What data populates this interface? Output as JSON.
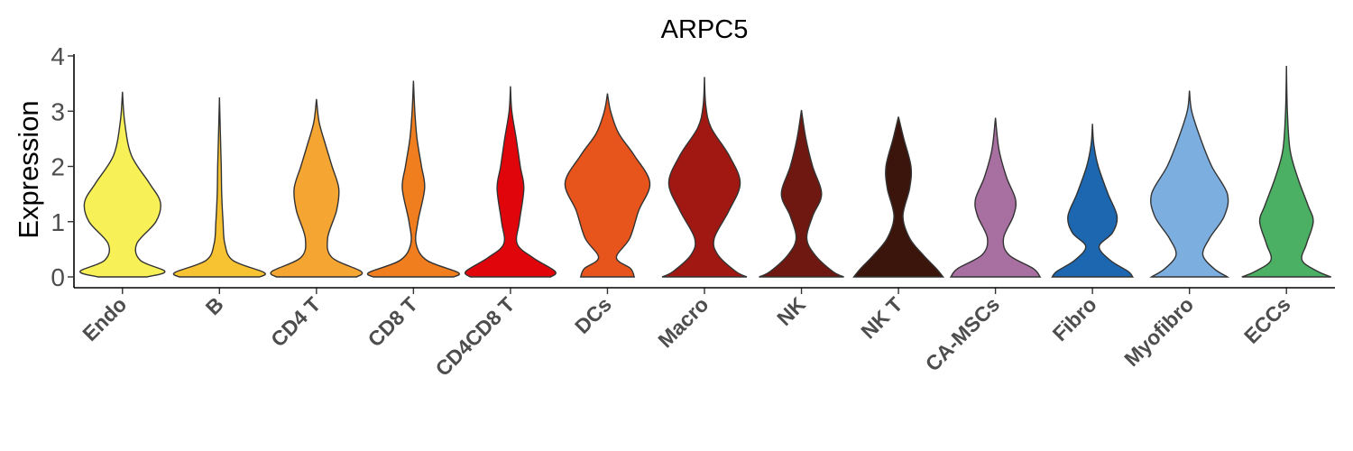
{
  "chart_data": {
    "type": "violin",
    "title": "ARPC5",
    "ylabel": "Expression",
    "xlabel": "",
    "ylim": [
      -0.2,
      4.0
    ],
    "yticks": [
      0,
      1,
      2,
      3,
      4
    ],
    "grid": false,
    "legend": "none",
    "categories": [
      {
        "name": "Endo",
        "color": "#F7F057",
        "max": 3.35,
        "density": [
          [
            0,
            0.55
          ],
          [
            0.1,
            0.95
          ],
          [
            0.3,
            0.4
          ],
          [
            0.6,
            0.32
          ],
          [
            1.0,
            0.75
          ],
          [
            1.35,
            0.85
          ],
          [
            1.7,
            0.6
          ],
          [
            2.2,
            0.2
          ],
          [
            2.8,
            0.05
          ],
          [
            3.35,
            0.01
          ]
        ]
      },
      {
        "name": "B",
        "color": "#F8C332",
        "max": 3.25,
        "density": [
          [
            0,
            0.9
          ],
          [
            0.08,
            1.0
          ],
          [
            0.3,
            0.3
          ],
          [
            0.6,
            0.12
          ],
          [
            1.0,
            0.08
          ],
          [
            1.5,
            0.05
          ],
          [
            2.0,
            0.04
          ],
          [
            2.6,
            0.02
          ],
          [
            3.25,
            0.01
          ]
        ]
      },
      {
        "name": "CD4 T",
        "color": "#F5A532",
        "max": 3.22,
        "density": [
          [
            0,
            0.9
          ],
          [
            0.1,
            1.0
          ],
          [
            0.35,
            0.35
          ],
          [
            0.7,
            0.25
          ],
          [
            1.2,
            0.45
          ],
          [
            1.6,
            0.5
          ],
          [
            2.0,
            0.35
          ],
          [
            2.4,
            0.2
          ],
          [
            2.8,
            0.06
          ],
          [
            3.22,
            0.01
          ]
        ]
      },
      {
        "name": "CD8 T",
        "color": "#F07E1F",
        "max": 3.55,
        "density": [
          [
            0,
            0.9
          ],
          [
            0.08,
            1.0
          ],
          [
            0.3,
            0.3
          ],
          [
            0.6,
            0.06
          ],
          [
            1.0,
            0.1
          ],
          [
            1.6,
            0.25
          ],
          [
            2.0,
            0.18
          ],
          [
            2.5,
            0.08
          ],
          [
            3.0,
            0.03
          ],
          [
            3.55,
            0.01
          ]
        ]
      },
      {
        "name": "CD4CD8 T",
        "color": "#E0040B",
        "max": 3.45,
        "density": [
          [
            0,
            0.9
          ],
          [
            0.1,
            1.0
          ],
          [
            0.35,
            0.5
          ],
          [
            0.6,
            0.15
          ],
          [
            1.0,
            0.2
          ],
          [
            1.6,
            0.3
          ],
          [
            2.0,
            0.22
          ],
          [
            2.5,
            0.13
          ],
          [
            3.0,
            0.03
          ],
          [
            3.45,
            0.01
          ]
        ]
      },
      {
        "name": "DCs",
        "color": "#E7551C",
        "max": 3.32,
        "density": [
          [
            0,
            0.6
          ],
          [
            0.15,
            0.52
          ],
          [
            0.35,
            0.2
          ],
          [
            0.7,
            0.5
          ],
          [
            1.2,
            0.7
          ],
          [
            1.7,
            0.95
          ],
          [
            2.2,
            0.6
          ],
          [
            2.6,
            0.25
          ],
          [
            3.0,
            0.07
          ],
          [
            3.32,
            0.01
          ]
        ]
      },
      {
        "name": "Macro",
        "color": "#A11712",
        "max": 3.62,
        "density": [
          [
            0,
            0.95
          ],
          [
            0.1,
            0.7
          ],
          [
            0.4,
            0.3
          ],
          [
            0.7,
            0.22
          ],
          [
            1.2,
            0.55
          ],
          [
            1.7,
            0.8
          ],
          [
            2.2,
            0.55
          ],
          [
            2.7,
            0.15
          ],
          [
            3.1,
            0.03
          ],
          [
            3.62,
            0.01
          ]
        ]
      },
      {
        "name": "NK",
        "color": "#6E1811",
        "max": 3.02,
        "density": [
          [
            0,
            0.95
          ],
          [
            0.1,
            0.7
          ],
          [
            0.4,
            0.3
          ],
          [
            0.7,
            0.12
          ],
          [
            1.1,
            0.25
          ],
          [
            1.5,
            0.45
          ],
          [
            2.0,
            0.25
          ],
          [
            2.5,
            0.1
          ],
          [
            3.02,
            0.01
          ]
        ]
      },
      {
        "name": "NK T",
        "color": "#3B140B",
        "max": 2.9,
        "density": [
          [
            0,
            1.0
          ],
          [
            0.15,
            0.85
          ],
          [
            0.4,
            0.55
          ],
          [
            0.7,
            0.25
          ],
          [
            1.1,
            0.1
          ],
          [
            1.6,
            0.25
          ],
          [
            2.0,
            0.28
          ],
          [
            2.5,
            0.12
          ],
          [
            2.9,
            0.01
          ]
        ]
      },
      {
        "name": "CA-MSCs",
        "color": "#A86FA1",
        "max": 2.88,
        "density": [
          [
            0,
            1.0
          ],
          [
            0.15,
            0.85
          ],
          [
            0.4,
            0.3
          ],
          [
            0.7,
            0.18
          ],
          [
            1.1,
            0.4
          ],
          [
            1.4,
            0.45
          ],
          [
            1.8,
            0.25
          ],
          [
            2.3,
            0.08
          ],
          [
            2.88,
            0.01
          ]
        ]
      },
      {
        "name": "Fibro",
        "color": "#1C67B0",
        "max": 2.77,
        "density": [
          [
            0,
            0.9
          ],
          [
            0.1,
            0.8
          ],
          [
            0.3,
            0.4
          ],
          [
            0.55,
            0.15
          ],
          [
            0.8,
            0.45
          ],
          [
            1.1,
            0.55
          ],
          [
            1.5,
            0.35
          ],
          [
            2.0,
            0.13
          ],
          [
            2.4,
            0.03
          ],
          [
            2.77,
            0.01
          ]
        ]
      },
      {
        "name": "Myofibro",
        "color": "#7DAEE0",
        "max": 3.37,
        "density": [
          [
            0,
            0.85
          ],
          [
            0.15,
            0.55
          ],
          [
            0.4,
            0.3
          ],
          [
            0.7,
            0.45
          ],
          [
            1.1,
            0.78
          ],
          [
            1.5,
            0.85
          ],
          [
            2.0,
            0.5
          ],
          [
            2.5,
            0.25
          ],
          [
            3.0,
            0.05
          ],
          [
            3.37,
            0.01
          ]
        ]
      },
      {
        "name": "ECCs",
        "color": "#4BB063",
        "max": 3.82,
        "density": [
          [
            0,
            1.0
          ],
          [
            0.1,
            0.7
          ],
          [
            0.3,
            0.35
          ],
          [
            0.6,
            0.45
          ],
          [
            1.0,
            0.6
          ],
          [
            1.3,
            0.48
          ],
          [
            1.8,
            0.25
          ],
          [
            2.3,
            0.08
          ],
          [
            3.0,
            0.02
          ],
          [
            3.82,
            0.01
          ]
        ]
      }
    ]
  }
}
